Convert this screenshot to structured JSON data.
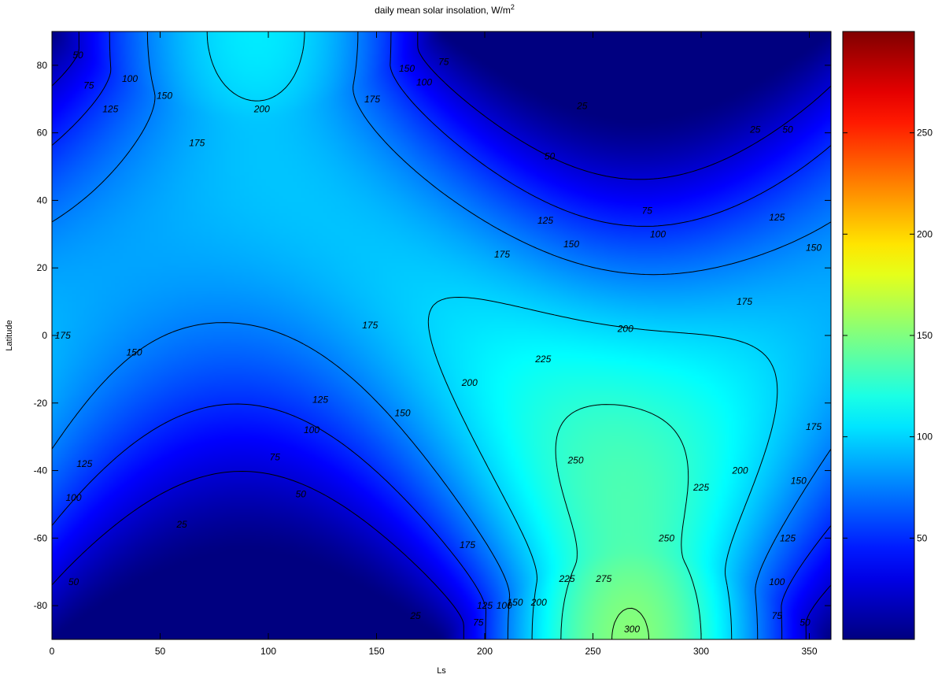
{
  "chart_data": {
    "type": "heatmap",
    "subtype": "filled-contour",
    "title": "daily mean solar insolation, W/m",
    "title_superscript": "2",
    "xlabel": "Ls",
    "ylabel": "Latitude",
    "xlim": [
      0,
      360
    ],
    "ylim": [
      -90,
      90
    ],
    "xticks": [
      "0",
      "50",
      "100",
      "150",
      "200",
      "250",
      "300",
      "350"
    ],
    "yticks": [
      "-80",
      "-60",
      "-40",
      "-20",
      "0",
      "20",
      "40",
      "60",
      "80"
    ],
    "colormap": "jet",
    "colorbar": {
      "clim": [
        0,
        300
      ],
      "ticks": [
        "50",
        "100",
        "150",
        "200",
        "250"
      ],
      "placement": "right"
    },
    "contour_levels": [
      25,
      50,
      75,
      100,
      125,
      150,
      175,
      200,
      225,
      250,
      275,
      300
    ],
    "field_features": [
      {
        "x": 270,
        "y": -90,
        "value": 300,
        "note": "maximum"
      },
      {
        "x": 95,
        "y": 90,
        "value": 210,
        "note": "local maximum"
      },
      {
        "x": 270,
        "y": 80,
        "value": 0,
        "note": "polar night"
      },
      {
        "x": 90,
        "y": -80,
        "value": 0,
        "note": "polar night"
      }
    ],
    "contour_labels": [
      {
        "text": "200",
        "x": 97,
        "y": 67
      },
      {
        "text": "175",
        "x": 148,
        "y": 70
      },
      {
        "text": "150",
        "x": 164,
        "y": 79
      },
      {
        "text": "75",
        "x": 181,
        "y": 81
      },
      {
        "text": "100",
        "x": 172,
        "y": 75
      },
      {
        "text": "100",
        "x": 36,
        "y": 76
      },
      {
        "text": "75",
        "x": 17,
        "y": 74
      },
      {
        "text": "50",
        "x": 12,
        "y": 83
      },
      {
        "text": "125",
        "x": 27,
        "y": 67
      },
      {
        "text": "150",
        "x": 52,
        "y": 71
      },
      {
        "text": "175",
        "x": 67,
        "y": 57
      },
      {
        "text": "25",
        "x": 245,
        "y": 68
      },
      {
        "text": "25",
        "x": 325,
        "y": 61
      },
      {
        "text": "50",
        "x": 340,
        "y": 61
      },
      {
        "text": "50",
        "x": 230,
        "y": 53
      },
      {
        "text": "75",
        "x": 275,
        "y": 37
      },
      {
        "text": "100",
        "x": 280,
        "y": 30
      },
      {
        "text": "125",
        "x": 228,
        "y": 34
      },
      {
        "text": "125",
        "x": 335,
        "y": 35
      },
      {
        "text": "150",
        "x": 240,
        "y": 27
      },
      {
        "text": "150",
        "x": 352,
        "y": 26
      },
      {
        "text": "175",
        "x": 208,
        "y": 24
      },
      {
        "text": "175",
        "x": 320,
        "y": 10
      },
      {
        "text": "200",
        "x": 265,
        "y": 2
      },
      {
        "text": "175",
        "x": 147,
        "y": 3
      },
      {
        "text": "175",
        "x": 5,
        "y": 0
      },
      {
        "text": "150",
        "x": 38,
        "y": -5
      },
      {
        "text": "125",
        "x": 124,
        "y": -19
      },
      {
        "text": "150",
        "x": 162,
        "y": -23
      },
      {
        "text": "100",
        "x": 120,
        "y": -28
      },
      {
        "text": "75",
        "x": 103,
        "y": -36
      },
      {
        "text": "50",
        "x": 115,
        "y": -47
      },
      {
        "text": "25",
        "x": 60,
        "y": -56
      },
      {
        "text": "125",
        "x": 15,
        "y": -38
      },
      {
        "text": "100",
        "x": 10,
        "y": -48
      },
      {
        "text": "50",
        "x": 10,
        "y": -73
      },
      {
        "text": "25",
        "x": 168,
        "y": -83
      },
      {
        "text": "200",
        "x": 193,
        "y": -14
      },
      {
        "text": "225",
        "x": 227,
        "y": -7
      },
      {
        "text": "250",
        "x": 242,
        "y": -37
      },
      {
        "text": "175",
        "x": 192,
        "y": -62
      },
      {
        "text": "125",
        "x": 200,
        "y": -80
      },
      {
        "text": "100",
        "x": 209,
        "y": -80
      },
      {
        "text": "75",
        "x": 197,
        "y": -85
      },
      {
        "text": "150",
        "x": 214,
        "y": -79
      },
      {
        "text": "200",
        "x": 225,
        "y": -79
      },
      {
        "text": "225",
        "x": 238,
        "y": -72
      },
      {
        "text": "275",
        "x": 255,
        "y": -72
      },
      {
        "text": "300",
        "x": 268,
        "y": -87
      },
      {
        "text": "250",
        "x": 284,
        "y": -60
      },
      {
        "text": "225",
        "x": 300,
        "y": -45
      },
      {
        "text": "200",
        "x": 318,
        "y": -40
      },
      {
        "text": "175",
        "x": 352,
        "y": -27
      },
      {
        "text": "150",
        "x": 345,
        "y": -43
      },
      {
        "text": "125",
        "x": 340,
        "y": -60
      },
      {
        "text": "100",
        "x": 335,
        "y": -73
      },
      {
        "text": "75",
        "x": 335,
        "y": -83
      },
      {
        "text": "50",
        "x": 348,
        "y": -85
      }
    ]
  }
}
